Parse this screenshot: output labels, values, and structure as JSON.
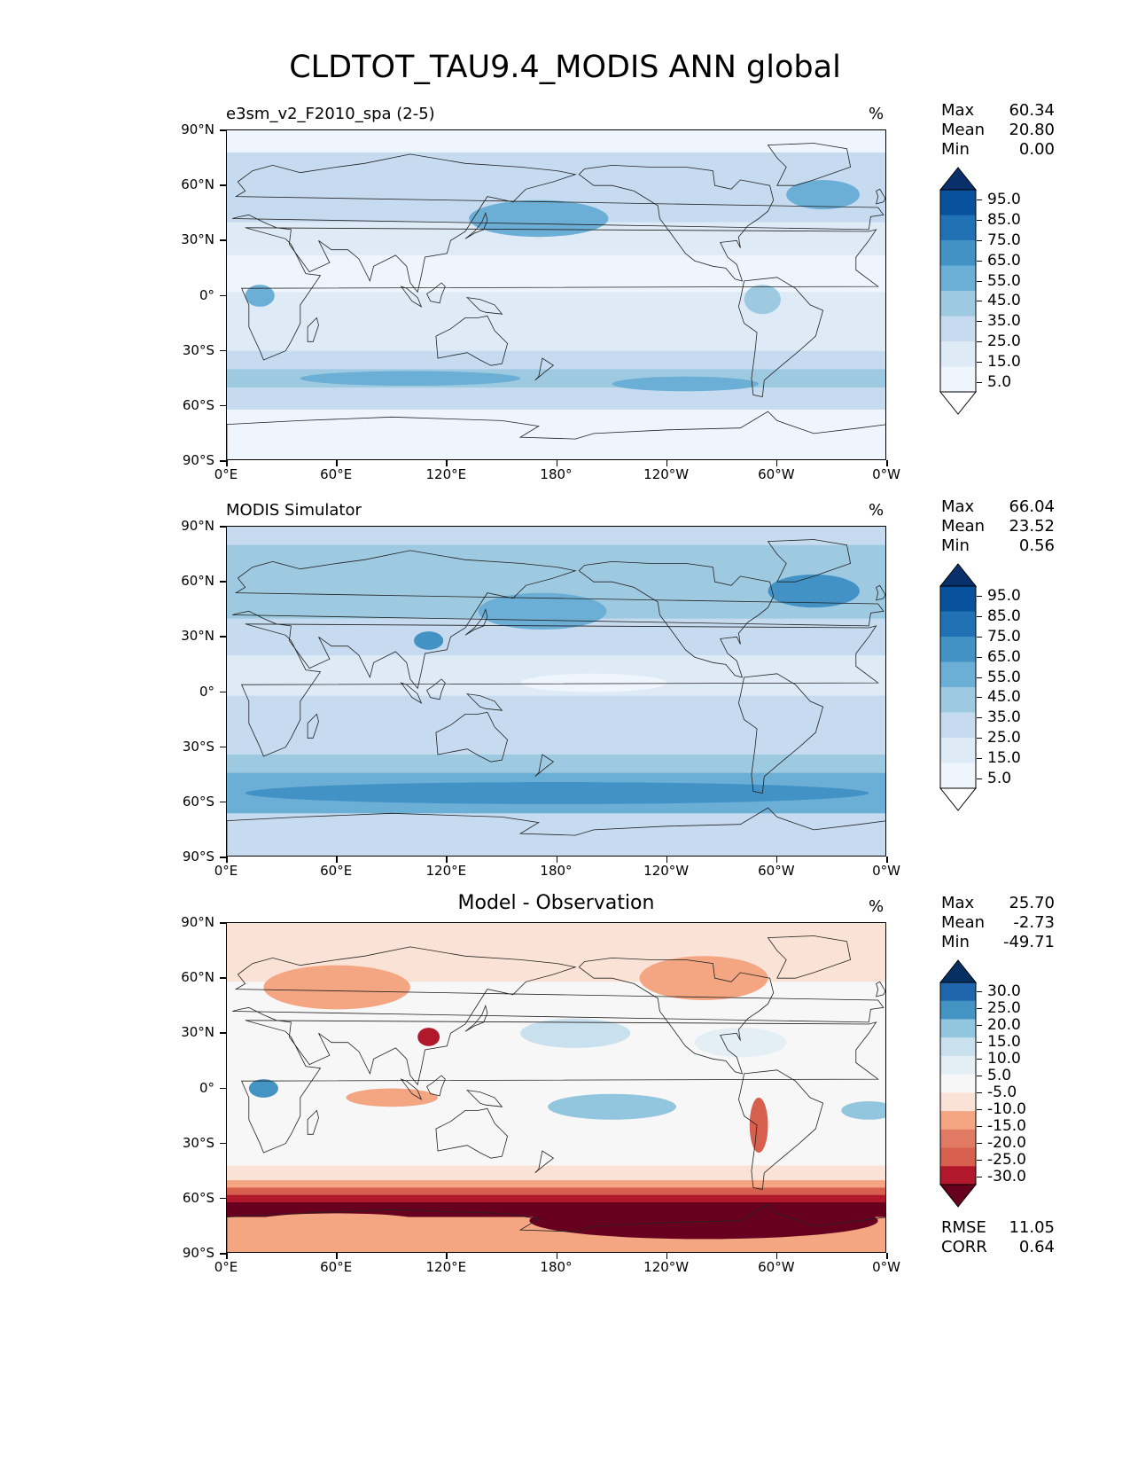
{
  "figure": {
    "title": "CLDTOT_TAU9.4_MODIS ANN global"
  },
  "axes": {
    "lat_labels": [
      "90°N",
      "60°N",
      "30°N",
      "0°",
      "30°S",
      "60°S",
      "90°S"
    ],
    "lon_labels": [
      "0°E",
      "60°E",
      "120°E",
      "180°",
      "120°W",
      "60°W",
      "0°W"
    ]
  },
  "panels": [
    {
      "label": "e3sm_v2_F2010_spa (2-5)",
      "label_position": "left",
      "units": "%",
      "stats": [
        {
          "name": "Max",
          "value": "60.34"
        },
        {
          "name": "Mean",
          "value": "20.80"
        },
        {
          "name": "Min",
          "value": "0.00"
        }
      ],
      "colorbar_labels": [
        "95.0",
        "85.0",
        "75.0",
        "65.0",
        "55.0",
        "45.0",
        "35.0",
        "25.0",
        "15.0",
        "5.0"
      ],
      "colors": [
        "#08306b",
        "#08519c",
        "#2171b5",
        "#4292c6",
        "#6baed6",
        "#9ecae1",
        "#c6dbef",
        "#deebf7",
        "#eef5fc",
        "#ffffff"
      ],
      "palette_name": "Blues"
    },
    {
      "label": "MODIS Simulator",
      "label_position": "left",
      "units": "%",
      "stats": [
        {
          "name": "Max",
          "value": "66.04"
        },
        {
          "name": "Mean",
          "value": "23.52"
        },
        {
          "name": "Min",
          "value": "0.56"
        }
      ],
      "colorbar_labels": [
        "95.0",
        "85.0",
        "75.0",
        "65.0",
        "55.0",
        "45.0",
        "35.0",
        "25.0",
        "15.0",
        "5.0"
      ],
      "colors": [
        "#08306b",
        "#08519c",
        "#2171b5",
        "#4292c6",
        "#6baed6",
        "#9ecae1",
        "#c6dbef",
        "#deebf7",
        "#eef5fc",
        "#ffffff"
      ],
      "palette_name": "Blues"
    },
    {
      "label": "Model - Observation",
      "label_position": "center",
      "units": "%",
      "stats": [
        {
          "name": "Max",
          "value": "25.70"
        },
        {
          "name": "Mean",
          "value": "-2.73"
        },
        {
          "name": "Min",
          "value": "-49.71"
        }
      ],
      "colorbar_labels": [
        "30.0",
        "25.0",
        "20.0",
        "15.0",
        "10.0",
        "5.0",
        "-5.0",
        "-10.0",
        "-15.0",
        "-20.0",
        "-25.0",
        "-30.0"
      ],
      "colors": [
        "#053061",
        "#2166ac",
        "#4393c3",
        "#92c5de",
        "#c9e1ee",
        "#e3eef5",
        "#f7f7f7",
        "#fbe2d6",
        "#f4a582",
        "#e07a64",
        "#d6604d",
        "#b2182b",
        "#67001f"
      ],
      "palette_name": "RdBu_r",
      "metrics": [
        {
          "name": "RMSE",
          "value": "11.05"
        },
        {
          "name": "CORR",
          "value": "0.64"
        }
      ]
    }
  ]
}
